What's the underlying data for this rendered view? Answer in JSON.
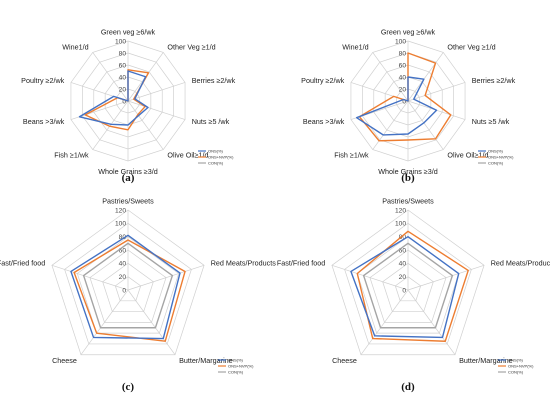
{
  "colors": {
    "ons": "#4472C4",
    "onsnvp": "#ED7D31",
    "con": "#A5A5A5",
    "grid": "#D0D0D0",
    "text": "#222222"
  },
  "chart_data": [
    {
      "type": "radar",
      "panel": "(a)",
      "categories": [
        "Green veg ≥6/wk",
        "Other Veg ≥1/d",
        "Berries ≥2/wk",
        "Nuts ≥5 /wk",
        "Olive Oil≥1/d",
        "Whole Grains ≥3/d",
        "Fish ≥1/wk",
        "Beans >3/wk",
        "Poultry ≥2/wk",
        "Wine1/d"
      ],
      "rmax": 100,
      "ticks": [
        0,
        20,
        40,
        60,
        80,
        100
      ],
      "series": [
        {
          "name": "ONS(%)",
          "color_key": "ons",
          "values": [
            50,
            50,
            12,
            35,
            30,
            40,
            48,
            85,
            25,
            0
          ]
        },
        {
          "name": "ONS+NVP(%)",
          "color_key": "onsnvp",
          "values": [
            52,
            58,
            10,
            30,
            28,
            48,
            52,
            75,
            18,
            0
          ]
        },
        {
          "name": "CON(%)",
          "color_key": "con",
          "values": [
            0,
            0,
            0,
            0,
            0,
            0,
            0,
            0,
            0,
            0
          ]
        }
      ]
    },
    {
      "type": "radar",
      "panel": "(b)",
      "categories": [
        "Green veg ≥6/wk",
        "Other Veg ≥1/d",
        "Berries ≥2/wk",
        "Nuts ≥5 /wk",
        "Olive Oil≥1/d",
        "Whole Grains ≥3/d",
        "Fish ≥1/wk",
        "Beans >3/wk",
        "Poultry ≥2/wk",
        "Wine1/d"
      ],
      "rmax": 100,
      "ticks": [
        0,
        20,
        40,
        60,
        80,
        100
      ],
      "series": [
        {
          "name": "ONS(%)",
          "color_key": "ons",
          "values": [
            40,
            45,
            10,
            50,
            45,
            55,
            70,
            90,
            8,
            0
          ]
        },
        {
          "name": "ONS+NVP(%)",
          "color_key": "onsnvp",
          "values": [
            80,
            78,
            30,
            75,
            78,
            65,
            82,
            85,
            25,
            0
          ]
        },
        {
          "name": "CON(%)",
          "color_key": "con",
          "values": [
            0,
            0,
            0,
            0,
            0,
            0,
            0,
            0,
            0,
            0
          ]
        }
      ]
    },
    {
      "type": "radar",
      "panel": "(c)",
      "categories": [
        "Pastries/Sweets",
        "Red Meats/Products",
        "Butter/Margarine",
        "Cheese",
        "Fast/Fried food"
      ],
      "rmax": 120,
      "ticks": [
        0,
        20,
        40,
        60,
        80,
        100,
        120
      ],
      "series": [
        {
          "name": "ONS(%)",
          "color_key": "ons",
          "values": [
            82,
            82,
            90,
            88,
            90
          ]
        },
        {
          "name": "ONS+NVP(%)",
          "color_key": "onsnvp",
          "values": [
            75,
            90,
            95,
            80,
            85
          ]
        },
        {
          "name": "CON(%)",
          "color_key": "con",
          "values": [
            70,
            70,
            70,
            70,
            70
          ]
        }
      ]
    },
    {
      "type": "radar",
      "panel": "(d)",
      "categories": [
        "Pastries/Sweets",
        "Red Meats/Products",
        "Butter/Margarine",
        "Cheese",
        "Fast/Fried food"
      ],
      "rmax": 120,
      "ticks": [
        0,
        20,
        40,
        60,
        80,
        100,
        120
      ],
      "series": [
        {
          "name": "ONS(%)",
          "color_key": "ons",
          "values": [
            80,
            80,
            88,
            85,
            90
          ]
        },
        {
          "name": "ONS+NVP(%)",
          "color_key": "onsnvp",
          "values": [
            88,
            95,
            95,
            90,
            80
          ]
        },
        {
          "name": "CON(%)",
          "color_key": "con",
          "values": [
            70,
            70,
            70,
            70,
            70
          ]
        }
      ]
    }
  ]
}
